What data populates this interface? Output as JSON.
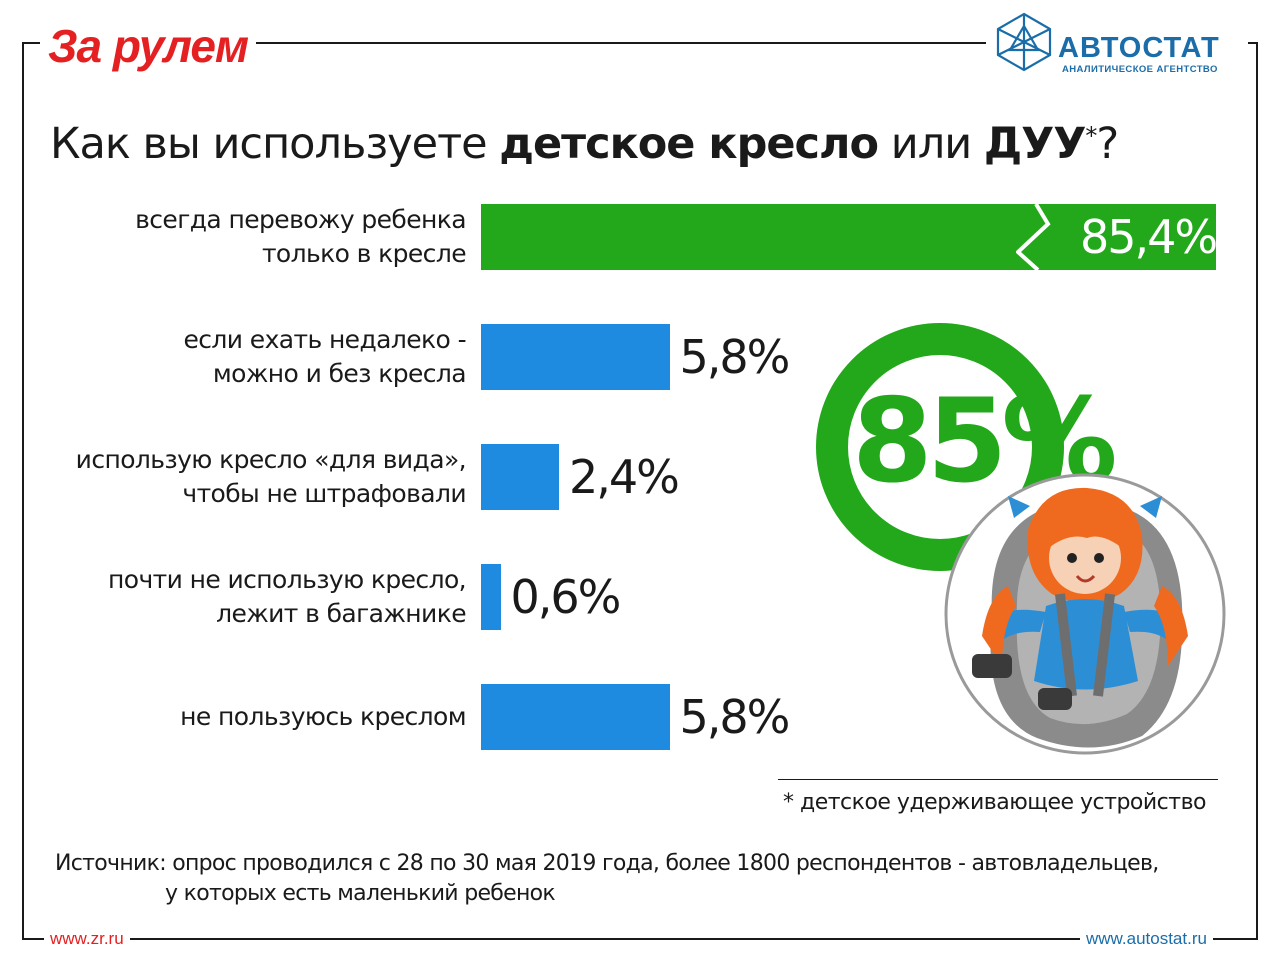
{
  "brand": {
    "left_logo": "За рулем",
    "right_logo": "АВТОСТАТ",
    "right_logo_sub": "АНАЛИТИЧЕСКОЕ АГЕНТСТВО",
    "left_url": "www.zr.ru",
    "right_url": "www.autostat.ru",
    "colors": {
      "zr_red": "#e42022",
      "autostat_blue": "#1a6da8",
      "green": "#22a81a",
      "blue": "#1f8be0"
    }
  },
  "title": {
    "part1": "Как вы используете ",
    "part2": "детское кресло",
    "part3": " или ",
    "part4": "ДУУ",
    "part5": "*",
    "part6": "?"
  },
  "chart_data": {
    "type": "bar",
    "orientation": "horizontal",
    "categories": [
      "всегда перевожу ребенка только в кресле",
      "если ехать недалеко - можно и без кресла",
      "использую кресло «для вида», чтобы не штрафовали",
      "почти не использую кресло, лежит в багажнике",
      "не пользуюсь креслом"
    ],
    "category_lines": [
      [
        "всегда перевожу ребенка",
        "только в кресле"
      ],
      [
        "если ехать недалеко -",
        "можно и без кресла"
      ],
      [
        "использую кресло «для вида»,",
        "чтобы не штрафовали"
      ],
      [
        "почти не использую кресло,",
        "лежит в багажнике"
      ],
      [
        "не пользуюсь креслом"
      ]
    ],
    "values": [
      85.4,
      5.8,
      2.4,
      0.6,
      5.8
    ],
    "value_labels": [
      "85,4%",
      "5,8%",
      "2,4%",
      "0,6%",
      "5,8%"
    ],
    "bar_colors": [
      "#22a81a",
      "#1f8be0",
      "#1f8be0",
      "#1f8be0",
      "#1f8be0"
    ],
    "unit": "%",
    "highlight": {
      "label": "85%",
      "value": 85
    }
  },
  "illustration": "child-car-seat-icon",
  "footnote": "* детское удерживающее устройство",
  "source": {
    "line1": "Источник: опрос проводился с 28 по 30 мая 2019 года, более 1800 респондентов - автовладельцев,",
    "line2": "у которых есть маленький ребенок"
  }
}
